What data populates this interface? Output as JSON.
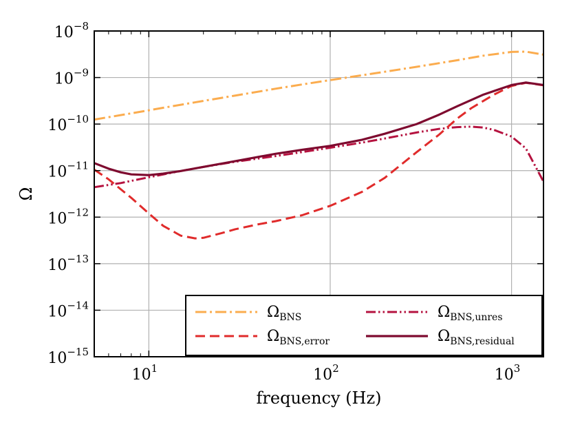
{
  "chart_data": {
    "type": "line",
    "title": "",
    "xlabel": "frequency (Hz)",
    "ylabel": "Ω",
    "xscale": "log",
    "yscale": "log",
    "xlim": [
      5,
      1500
    ],
    "ylim": [
      1e-15,
      1e-08
    ],
    "grid": true,
    "legend_position": "bottom-right",
    "x_ticks": [
      {
        "value": 10,
        "base": "10",
        "exp": "1"
      },
      {
        "value": 100,
        "base": "10",
        "exp": "2"
      },
      {
        "value": 1000,
        "base": "10",
        "exp": "3"
      }
    ],
    "y_ticks": [
      {
        "value": 1e-15,
        "base": "10",
        "exp": "−15"
      },
      {
        "value": 1e-14,
        "base": "10",
        "exp": "−14"
      },
      {
        "value": 1e-13,
        "base": "10",
        "exp": "−13"
      },
      {
        "value": 1e-12,
        "base": "10",
        "exp": "−12"
      },
      {
        "value": 1e-11,
        "base": "10",
        "exp": "−11"
      },
      {
        "value": 1e-10,
        "base": "10",
        "exp": "−10"
      },
      {
        "value": 1e-09,
        "base": "10",
        "exp": "−9"
      },
      {
        "value": 1e-08,
        "base": "10",
        "exp": "−8"
      }
    ],
    "series": [
      {
        "name": "Ω_BNS",
        "label_main": "Ω",
        "label_sub": "BNS",
        "color": "#fbac4e",
        "dash": "16 5 3 5",
        "width": 3,
        "x": [
          5,
          8,
          10,
          15,
          20,
          30,
          50,
          70,
          100,
          150,
          200,
          300,
          500,
          700,
          1000,
          1200,
          1500
        ],
        "y": [
          1.25e-10,
          1.7e-10,
          1.98e-10,
          2.6e-10,
          3.15e-10,
          4.1e-10,
          5.75e-10,
          7.1e-10,
          8.8e-10,
          1.12e-09,
          1.33e-09,
          1.7e-09,
          2.35e-09,
          2.95e-09,
          3.55e-09,
          3.6e-09,
          3.1e-09
        ]
      },
      {
        "name": "Ω_BNS,unres",
        "label_main": "Ω",
        "label_sub": "BNS,unres",
        "color": "#b5123f",
        "dash": "14 4 2.5 4 2.5 4",
        "width": 3,
        "x": [
          5,
          7,
          10,
          15,
          20,
          30,
          50,
          70,
          100,
          150,
          200,
          300,
          400,
          500,
          600,
          700,
          800,
          1000,
          1200,
          1500
        ],
        "y": [
          4.4e-12,
          5.4e-12,
          7.2e-12,
          9.8e-12,
          1.2e-11,
          1.55e-11,
          2.05e-11,
          2.5e-11,
          3.1e-11,
          4e-11,
          4.9e-11,
          6.6e-11,
          7.9e-11,
          8.6e-11,
          8.8e-11,
          8.4e-11,
          7.5e-11,
          5.4e-11,
          3e-11,
          5.8e-12
        ]
      },
      {
        "name": "Ω_BNS,error",
        "label_main": "Ω",
        "label_sub": "BNS,error",
        "color": "#e02b2b",
        "dash": "14 7",
        "width": 3,
        "x": [
          5,
          6,
          8,
          10,
          12,
          15,
          18,
          20,
          25,
          30,
          40,
          50,
          70,
          100,
          150,
          200,
          300,
          400,
          500,
          600,
          800,
          1000,
          1200,
          1500
        ],
        "y": [
          1.05e-11,
          6.5e-12,
          2.6e-12,
          1.2e-12,
          6.5e-13,
          4e-13,
          3.5e-13,
          3.6e-13,
          4.5e-13,
          5.5e-13,
          7e-13,
          8.2e-13,
          1.1e-12,
          1.75e-12,
          3.5e-12,
          7e-12,
          2.5e-11,
          6e-11,
          1.3e-10,
          2.2e-10,
          4.3e-10,
          6.6e-10,
          7.7e-10,
          6.8e-10
        ]
      },
      {
        "name": "Ω_BNS,residual",
        "label_main": "Ω",
        "label_sub": "BNS,residual",
        "color": "#7e0a2f",
        "dash": "",
        "width": 3.2,
        "x": [
          5,
          6,
          7,
          8,
          10,
          12,
          15,
          20,
          30,
          50,
          70,
          100,
          150,
          200,
          300,
          400,
          500,
          700,
          1000,
          1200,
          1500
        ],
        "y": [
          1.45e-11,
          1.1e-11,
          9.2e-12,
          8.3e-12,
          8e-12,
          8.6e-12,
          9.8e-12,
          1.2e-11,
          1.6e-11,
          2.3e-11,
          2.8e-11,
          3.4e-11,
          4.6e-11,
          6.2e-11,
          1e-10,
          1.6e-10,
          2.4e-10,
          4.3e-10,
          6.9e-10,
          7.8e-10,
          6.9e-10
        ]
      }
    ]
  }
}
